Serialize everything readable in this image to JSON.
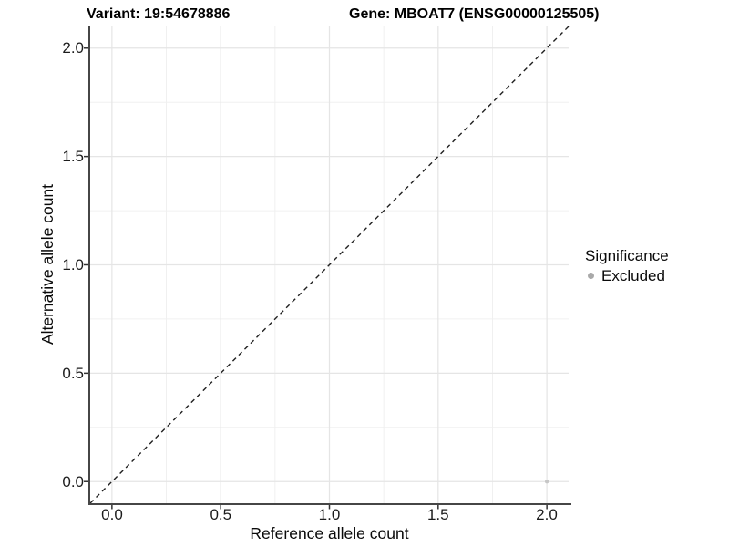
{
  "titles": {
    "variant": "Variant: 19:54678886",
    "gene": "Gene: MBOAT7 (ENSG00000125505)"
  },
  "axes": {
    "x": {
      "label": "Reference allele count",
      "ticks": [
        "0.0",
        "0.5",
        "1.0",
        "1.5",
        "2.0"
      ]
    },
    "y": {
      "label": "Alternative allele count",
      "ticks": [
        "2.0",
        "1.5",
        "1.0",
        "0.5",
        "0.0"
      ]
    }
  },
  "legend": {
    "title": "Significance",
    "items": [
      {
        "label": "Excluded",
        "color": "#a9a9a9"
      }
    ]
  },
  "chart_data": {
    "type": "scatter",
    "title": "Variant: 19:54678886 | Gene: MBOAT7 (ENSG00000125505)",
    "xlabel": "Reference allele count",
    "ylabel": "Alternative allele count",
    "xlim": [
      -0.1,
      2.1
    ],
    "ylim": [
      -0.1,
      2.1
    ],
    "x_major": [
      0,
      0.5,
      1,
      1.5,
      2
    ],
    "x_minor": [
      0.25,
      0.75,
      1.25,
      1.75
    ],
    "y_major": [
      0,
      0.5,
      1,
      1.5,
      2
    ],
    "y_minor": [
      0.25,
      0.75,
      1.25,
      1.75
    ],
    "grid": true,
    "legend_position": "right",
    "series": [
      {
        "name": "Excluded",
        "color": "#c7c7c7",
        "points": [
          {
            "x": 2.0,
            "y": 0.0
          }
        ]
      }
    ],
    "abline": {
      "slope": 1,
      "intercept": 0,
      "style": "dashed",
      "color": "#202020"
    },
    "colors": {
      "grid_major": "#e5e5e5",
      "grid_minor": "#f0f0f0",
      "axis_line": "#464646",
      "tick_mark": "#333333"
    }
  }
}
